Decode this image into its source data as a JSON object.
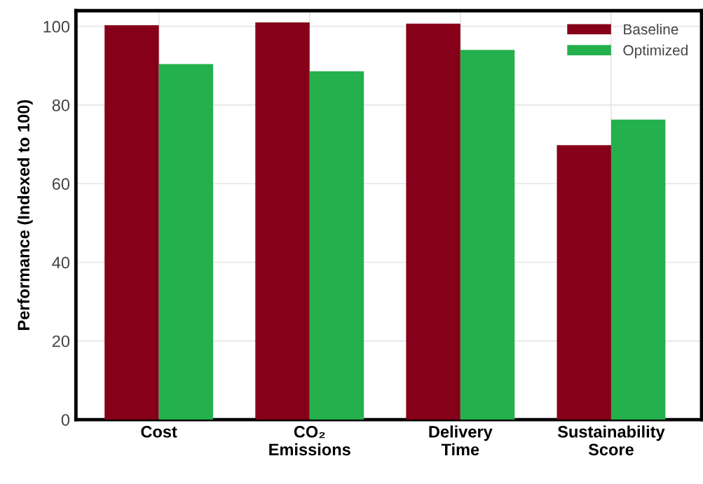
{
  "chart_data": {
    "type": "bar",
    "ylabel": "Performance (Indexed to 100)",
    "categories": [
      "Cost",
      "CO₂\nEmissions",
      "Delivery\nTime",
      "Sustainability\nScore"
    ],
    "series": [
      {
        "name": "Baseline",
        "color": "#850018",
        "values": [
          100.3,
          101,
          100.7,
          69.8
        ]
      },
      {
        "name": "Optimized",
        "color": "#24b04d",
        "values": [
          90.4,
          88.6,
          94,
          76.3
        ]
      }
    ],
    "ylim": [
      0,
      104
    ],
    "yticks": [
      0,
      20,
      40,
      60,
      80,
      100
    ],
    "grid": true,
    "legend": "top right"
  }
}
